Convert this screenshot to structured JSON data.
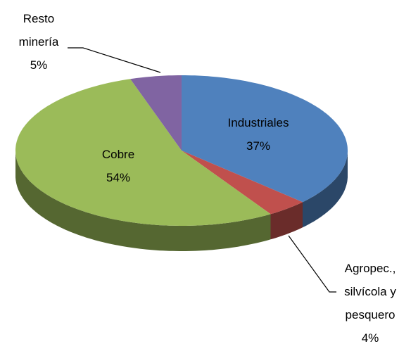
{
  "chart_data": {
    "type": "pie3d",
    "categories": [
      "Industriales",
      "Agropec., silvícola y pesquero",
      "Cobre",
      "Resto minería"
    ],
    "values": [
      37,
      4,
      54,
      5
    ],
    "value_labels": [
      "37%",
      "4%",
      "54%",
      "5%"
    ],
    "colors": [
      "#4f81bd",
      "#c0504d",
      "#9bbb59",
      "#8064a2"
    ]
  }
}
